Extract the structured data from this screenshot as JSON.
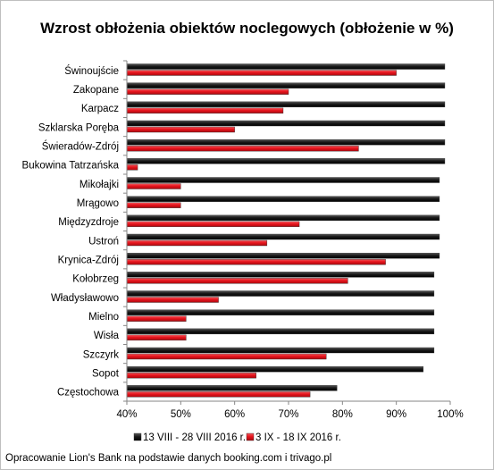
{
  "chart_data": {
    "type": "bar",
    "orientation": "horizontal",
    "title": "Wzrost obłożenia obiektów noclegowych (obłożenie w %)",
    "categories": [
      "Świnoujście",
      "Zakopane",
      "Karpacz",
      "Szklarska Poręba",
      "Świeradów-Zdrój",
      "Bukowina Tatrzańska",
      "Mikołajki",
      "Mrągowo",
      "Międzyzdroje",
      "Ustroń",
      "Krynica-Zdrój",
      "Kołobrzeg",
      "Władysławowo",
      "Mielno",
      "Wisła",
      "Szczyrk",
      "Sopot",
      "Częstochowa"
    ],
    "series": [
      {
        "name": "13 VIII - 28 VIII 2016 r.",
        "color": "#1a1a1a",
        "values": [
          99,
          99,
          99,
          99,
          99,
          99,
          98,
          98,
          98,
          98,
          98,
          97,
          97,
          97,
          97,
          97,
          95,
          79
        ]
      },
      {
        "name": "3 IX - 18 IX 2016 r.",
        "color": "#e8141d",
        "values": [
          90,
          70,
          69,
          60,
          83,
          42,
          50,
          50,
          72,
          66,
          88,
          81,
          57,
          51,
          51,
          77,
          64,
          74
        ]
      }
    ],
    "xlim": [
      40,
      100
    ],
    "xticks": [
      "40%",
      "50%",
      "60%",
      "70%",
      "80%",
      "90%",
      "100%"
    ],
    "grid": false,
    "legend": "bottom"
  },
  "source_note": "Opracowanie Lion's Bank na podstawie danych booking.com i trivago.pl"
}
